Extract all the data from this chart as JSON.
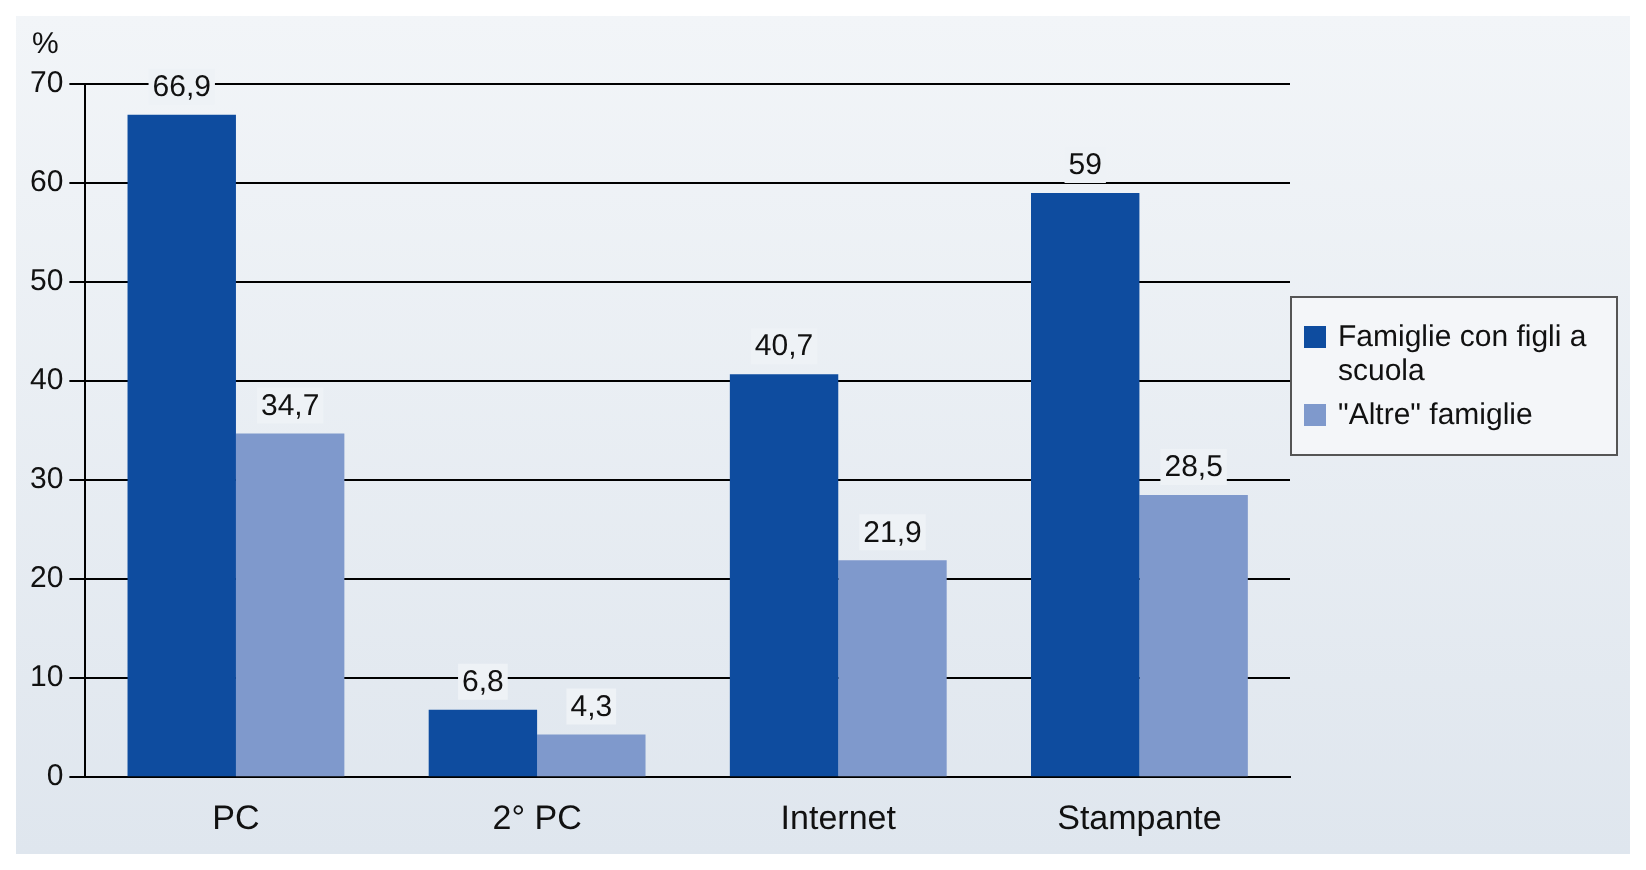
{
  "chart_data": {
    "type": "bar",
    "ylabel": "%",
    "categories": [
      "PC",
      "2° PC",
      "Internet",
      "Stampante"
    ],
    "series": [
      {
        "name": "Famiglie con figli a scuola",
        "color": "#0e4c9f",
        "values": [
          66.9,
          6.8,
          40.7,
          59
        ],
        "value_labels": [
          "66,9",
          "6,8",
          "40,7",
          "59"
        ]
      },
      {
        "name": "\"Altre\" famiglie",
        "color": "#7f99cc",
        "values": [
          34.7,
          4.3,
          21.9,
          28.5
        ],
        "value_labels": [
          "34,7",
          "4,3",
          "21,9",
          "28,5"
        ]
      }
    ],
    "ylim": [
      0,
      70
    ],
    "yticks": [
      0,
      10,
      20,
      30,
      40,
      50,
      60,
      70
    ],
    "grid": "y",
    "legend": "right"
  }
}
